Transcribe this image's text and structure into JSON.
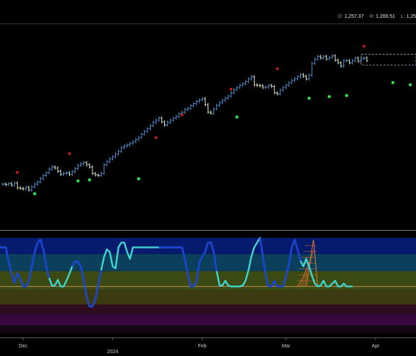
{
  "header": {
    "open_key": "O:",
    "open_value": "1,257.37",
    "high_key": "H:",
    "high_value": "1,269.51",
    "low_key": "L:",
    "low_value": "1,25"
  },
  "chart_data": {
    "type": "ohlc-with-oscillator",
    "title": "",
    "x_ticks": [
      {
        "label": "Dec",
        "day": 3
      },
      {
        "label": "2024",
        "day": 34
      },
      {
        "label": "Feb",
        "day": 65
      },
      {
        "label": "Mar",
        "day": 94
      },
      {
        "label": "Apr",
        "day": 125
      }
    ],
    "x_range": [
      -5,
      139
    ],
    "price": {
      "ylim": [
        955,
        1300
      ],
      "closes_first_day": -4,
      "closes": [
        1010,
        1009,
        1011,
        1008,
        1012,
        1003,
        1002,
        1001,
        1004,
        999,
        1005,
        1010,
        1014,
        1020,
        1026,
        1031,
        1038,
        1042,
        1040,
        1034,
        1028,
        1030,
        1031,
        1028,
        1033,
        1039,
        1045,
        1048,
        1050,
        1046,
        1042,
        1030,
        1027,
        1026,
        1030,
        1046,
        1052,
        1057,
        1061,
        1066,
        1071,
        1078,
        1081,
        1083,
        1086,
        1089,
        1093,
        1097,
        1103,
        1108,
        1113,
        1119,
        1125,
        1129,
        1133,
        1126,
        1120,
        1125,
        1129,
        1133,
        1136,
        1141,
        1144,
        1149,
        1151,
        1156,
        1160,
        1164,
        1167,
        1169,
        1158,
        1144,
        1142,
        1150,
        1157,
        1162,
        1166,
        1170,
        1174,
        1180,
        1186,
        1190,
        1194,
        1197,
        1201,
        1206,
        1210,
        1195,
        1194,
        1193,
        1190,
        1191,
        1194,
        1192,
        1180,
        1178,
        1185,
        1190,
        1194,
        1199,
        1203,
        1206,
        1210,
        1214,
        1211,
        1206,
        1213,
        1235,
        1243,
        1248,
        1245,
        1248,
        1243,
        1246,
        1249,
        1241,
        1236,
        1230,
        1240,
        1240,
        1236,
        1240,
        1245,
        1239,
        1244,
        1245,
        1240
      ],
      "sell_markers": [
        {
          "day": 1,
          "value": 1031
        },
        {
          "day": 19,
          "value": 1066
        },
        {
          "day": 49,
          "value": 1096
        },
        {
          "day": 58,
          "value": 1138
        },
        {
          "day": 75,
          "value": 1186
        },
        {
          "day": 91,
          "value": 1224
        },
        {
          "day": 121,
          "value": 1266
        }
      ],
      "buy_markers": [
        {
          "day": 7,
          "value": 992
        },
        {
          "day": 22,
          "value": 1016
        },
        {
          "day": 26,
          "value": 1018
        },
        {
          "day": 43,
          "value": 1020
        },
        {
          "day": 77,
          "value": 1135
        },
        {
          "day": 102,
          "value": 1170
        },
        {
          "day": 109,
          "value": 1173
        },
        {
          "day": 115,
          "value": 1175
        },
        {
          "day": 131,
          "value": 1199
        },
        {
          "day": 137,
          "value": 1195
        }
      ]
    },
    "oscillator": {
      "ylim": [
        0,
        100
      ],
      "bands": [
        {
          "from": 83,
          "to": 100,
          "color": "#061a6e"
        },
        {
          "from": 65,
          "to": 83,
          "color": "#0b3f5c"
        },
        {
          "from": 45,
          "to": 65,
          "color": "#3a4a12"
        },
        {
          "from": 30,
          "to": 45,
          "color": "#3b3a10"
        },
        {
          "from": 20,
          "to": 30,
          "color": "#2e0d1f"
        },
        {
          "from": 8,
          "to": 20,
          "color": "#36083e"
        },
        {
          "from": 0,
          "to": 8,
          "color": "#140814"
        }
      ],
      "reference_level": 49,
      "reference_color": "#c98a52",
      "first_day": -5,
      "values": [
        90,
        90,
        90,
        75,
        62,
        53,
        63,
        57,
        49,
        49,
        55,
        70,
        85,
        95,
        98,
        88,
        70,
        58,
        50,
        50,
        56,
        49,
        49,
        55,
        62,
        70,
        75,
        75,
        70,
        55,
        38,
        28,
        28,
        35,
        50,
        66,
        80,
        88,
        85,
        70,
        68,
        90,
        95,
        95,
        85,
        78,
        90,
        90,
        90,
        90,
        90,
        90,
        90,
        90,
        90,
        90,
        90,
        90,
        90,
        90,
        90,
        90,
        90,
        90,
        78,
        62,
        49,
        49,
        54,
        74,
        80,
        85,
        95,
        95,
        85,
        65,
        50,
        50,
        55,
        50,
        49,
        49,
        49,
        49,
        50,
        55,
        66,
        80,
        90,
        95,
        100,
        80,
        60,
        49,
        49,
        55,
        49,
        49,
        49,
        60,
        72,
        90,
        98,
        88,
        76,
        70,
        78,
        70,
        60,
        52,
        49,
        50,
        55,
        49,
        49,
        52,
        55,
        49,
        49,
        52,
        49,
        49,
        49
      ],
      "strong_segments": [
        [
          0,
          17
        ],
        [
          25,
          35
        ],
        [
          55,
          75
        ],
        [
          90,
          104
        ]
      ],
      "line_color": "#3fd6d0",
      "strong_color": "#1a3fd6"
    }
  }
}
